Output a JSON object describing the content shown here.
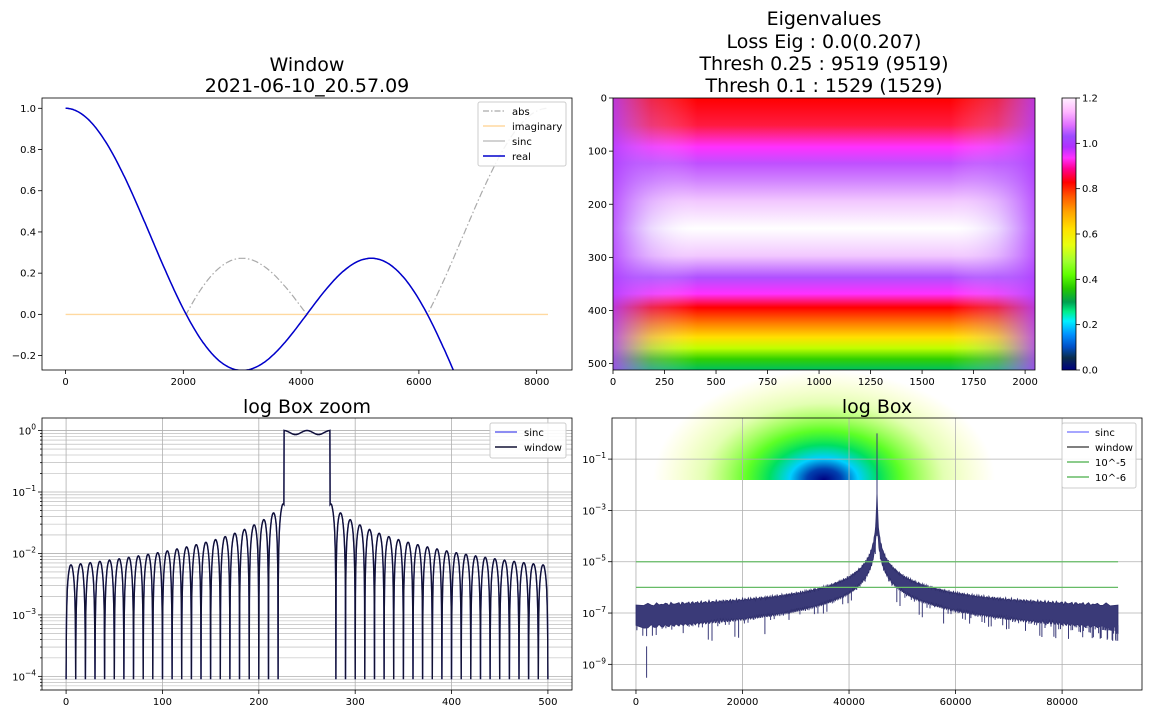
{
  "chart_data": [
    {
      "id": "window",
      "type": "line",
      "title": [
        "Window",
        "2021-06-10_20.57.09"
      ],
      "xlim": [
        -400,
        8600
      ],
      "ylim": [
        -0.27,
        1.05
      ],
      "xticks": [
        0,
        2000,
        4000,
        6000,
        8000
      ],
      "xtick_labels": [
        "0",
        "2000",
        "4000",
        "6000",
        "8000"
      ],
      "yticks": [
        -0.2,
        0.0,
        0.2,
        0.4,
        0.6,
        0.8,
        1.0
      ],
      "ytick_labels": [
        "−0.2",
        "0.0",
        "0.2",
        "0.4",
        "0.6",
        "0.8",
        "1.0"
      ],
      "legend": "top-right",
      "grid": false,
      "series": [
        {
          "name": "abs",
          "color": "#aaaaaa",
          "style": "dashdot",
          "n": 8192
        },
        {
          "name": "imaginary",
          "color": "#ffd9a0",
          "style": "solid",
          "n": 8192
        },
        {
          "name": "sinc",
          "color": "#b8b8b8",
          "style": "solid",
          "n": 8192
        },
        {
          "name": "real",
          "color": "#0000cc",
          "style": "solid",
          "n": 8192
        }
      ]
    },
    {
      "id": "eigenvalues",
      "type": "heatmap",
      "title": [
        "Eigenvalues",
        "Loss Eig : 0.0(0.207)",
        "Thresh 0.25 : 9519 (9519)",
        "Thresh 0.1 : 1529 (1529)"
      ],
      "xlim": [
        0,
        2048
      ],
      "ylim": [
        0,
        512
      ],
      "xticks": [
        0,
        250,
        500,
        750,
        1000,
        1250,
        1500,
        1750,
        2000
      ],
      "xtick_labels": [
        "0",
        "250",
        "500",
        "750",
        "1000",
        "1250",
        "1500",
        "1750",
        "2000"
      ],
      "yticks": [
        0,
        100,
        200,
        300,
        400,
        500
      ],
      "ytick_labels": [
        "0",
        "100",
        "200",
        "300",
        "400",
        "500"
      ],
      "colormap": "gist_ncar",
      "colorbar": {
        "range": [
          0.0,
          1.2
        ],
        "ticks": [
          0.0,
          0.2,
          0.4,
          0.6,
          0.8,
          1.0,
          1.2
        ],
        "tick_labels": [
          "0.0",
          "0.2",
          "0.4",
          "0.6",
          "0.8",
          "1.0",
          "1.2"
        ]
      }
    },
    {
      "id": "log-box-zoom",
      "type": "line",
      "title": [
        "log Box zoom"
      ],
      "yscale": "log",
      "xlim": [
        -25,
        525
      ],
      "ylim": [
        6e-05,
        1.6
      ],
      "xticks": [
        0,
        100,
        200,
        300,
        400,
        500
      ],
      "xtick_labels": [
        "0",
        "100",
        "200",
        "300",
        "400",
        "500"
      ],
      "yticks": [
        0.0001,
        0.001,
        0.01,
        0.1,
        1
      ],
      "ytick_labels": [
        {
          "base": "10",
          "exp": "−4"
        },
        {
          "base": "10",
          "exp": "−3"
        },
        {
          "base": "10",
          "exp": "−2"
        },
        {
          "base": "10",
          "exp": "−1"
        },
        {
          "base": "10",
          "exp": "0"
        }
      ],
      "grid": true,
      "legend": "top-right",
      "series": [
        {
          "name": "sinc",
          "color": "#6666ee"
        },
        {
          "name": "window",
          "color": "#111133"
        }
      ]
    },
    {
      "id": "log-box",
      "type": "line",
      "title": [
        "log Box"
      ],
      "yscale": "log",
      "xlim": [
        -4500,
        95000
      ],
      "ylim": [
        1e-10,
        4
      ],
      "xticks": [
        0,
        20000,
        40000,
        60000,
        80000
      ],
      "xtick_labels": [
        "0",
        "20000",
        "40000",
        "60000",
        "80000"
      ],
      "yticks": [
        1e-09,
        1e-07,
        1e-05,
        0.001,
        0.1
      ],
      "ytick_labels": [
        {
          "base": "10",
          "exp": "−9"
        },
        {
          "base": "10",
          "exp": "−7"
        },
        {
          "base": "10",
          "exp": "−5"
        },
        {
          "base": "10",
          "exp": "−3"
        },
        {
          "base": "10",
          "exp": "−1"
        }
      ],
      "grid": true,
      "legend": "top-right",
      "series": [
        {
          "name": "sinc",
          "color": "#8888ff"
        },
        {
          "name": "window",
          "color": "#555555"
        },
        {
          "name": "10^-5",
          "color": "#66bb66",
          "value": 1e-05
        },
        {
          "name": "10^-6",
          "color": "#66bb66",
          "value": 1e-06
        }
      ]
    }
  ]
}
